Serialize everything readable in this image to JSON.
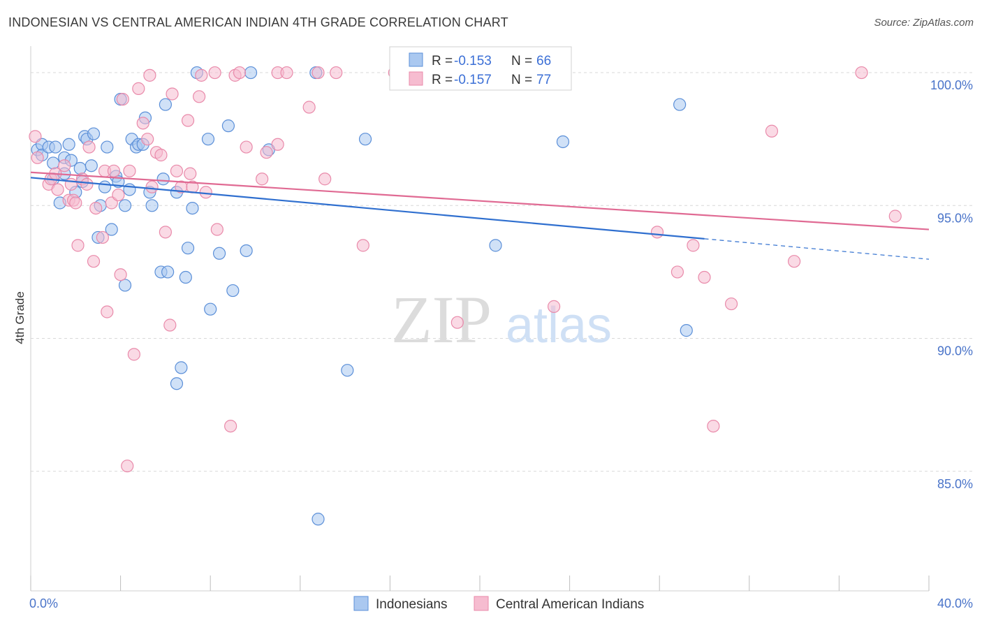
{
  "title": "INDONESIAN VS CENTRAL AMERICAN INDIAN 4TH GRADE CORRELATION CHART",
  "source": "Source: ZipAtlas.com",
  "watermark": {
    "zip": "ZIP",
    "atlas": "atlas"
  },
  "colors": {
    "blue_fill": "#aac8f0",
    "blue_stroke": "#5b8fd8",
    "blue_line": "#2f6fcf",
    "pink_fill": "#f6bcd0",
    "pink_stroke": "#e98aaa",
    "pink_line": "#e06a93",
    "axis_label": "#4a74c9",
    "grid": "#d8d8d8"
  },
  "legend": {
    "rows": [
      {
        "r_label": "R = ",
        "r_value": "-0.153",
        "n_label": "N = ",
        "n_value": "66",
        "series": "blue"
      },
      {
        "r_label": "R = ",
        "r_value": "-0.157",
        "n_label": "N = ",
        "n_value": "77",
        "series": "pink"
      }
    ]
  },
  "bottom_legend": [
    {
      "label": "Indonesians",
      "series": "blue"
    },
    {
      "label": "Central American Indians",
      "series": "pink"
    }
  ],
  "chart_data": {
    "type": "scatter",
    "title": "INDONESIAN VS CENTRAL AMERICAN INDIAN 4TH GRADE CORRELATION CHART",
    "xlabel": "",
    "ylabel": "4th Grade",
    "xlim": [
      0,
      40
    ],
    "ylim": [
      80.5,
      101
    ],
    "x_tick_labels": [
      {
        "value": 0,
        "label": "0.0%"
      },
      {
        "value": 40,
        "label": "40.0%"
      }
    ],
    "y_ticks": [
      {
        "value": 100,
        "label": "100.0%"
      },
      {
        "value": 95,
        "label": "95.0%"
      },
      {
        "value": 90,
        "label": "90.0%"
      },
      {
        "value": 85,
        "label": "85.0%"
      }
    ],
    "x_minor_ticks": [
      0,
      4,
      8,
      12,
      16,
      20,
      24,
      28,
      32,
      36,
      40
    ],
    "grid": true,
    "legend_position": "top-center",
    "series": [
      {
        "name": "Indonesians",
        "color": "blue",
        "trend": {
          "x0": 0,
          "y0": 96.05,
          "x1": 30,
          "y1": 93.75,
          "dash_to_x": 40,
          "dash_to_y": 92.98
        },
        "points": [
          [
            0.3,
            97.1
          ],
          [
            0.5,
            97.3
          ],
          [
            0.5,
            96.9
          ],
          [
            0.8,
            97.2
          ],
          [
            1.0,
            96.0
          ],
          [
            1.0,
            96.6
          ],
          [
            1.1,
            97.2
          ],
          [
            1.3,
            95.1
          ],
          [
            1.5,
            96.2
          ],
          [
            1.5,
            96.8
          ],
          [
            1.7,
            97.3
          ],
          [
            1.8,
            96.7
          ],
          [
            2.0,
            95.5
          ],
          [
            2.2,
            96.4
          ],
          [
            2.3,
            95.9
          ],
          [
            2.4,
            97.6
          ],
          [
            2.5,
            97.5
          ],
          [
            2.7,
            96.5
          ],
          [
            2.8,
            97.7
          ],
          [
            3.0,
            93.8
          ],
          [
            3.1,
            95.0
          ],
          [
            3.3,
            95.7
          ],
          [
            3.4,
            97.2
          ],
          [
            3.6,
            94.1
          ],
          [
            3.8,
            96.1
          ],
          [
            3.9,
            95.9
          ],
          [
            4.0,
            99.0
          ],
          [
            4.2,
            92.0
          ],
          [
            4.2,
            95.0
          ],
          [
            4.4,
            95.6
          ],
          [
            4.5,
            97.5
          ],
          [
            4.7,
            97.2
          ],
          [
            4.8,
            97.3
          ],
          [
            5.0,
            97.3
          ],
          [
            5.1,
            98.3
          ],
          [
            5.3,
            95.5
          ],
          [
            5.4,
            95.0
          ],
          [
            5.8,
            92.5
          ],
          [
            5.9,
            96.0
          ],
          [
            6.0,
            98.8
          ],
          [
            6.1,
            92.5
          ],
          [
            6.5,
            95.5
          ],
          [
            6.5,
            88.3
          ],
          [
            6.7,
            88.9
          ],
          [
            6.9,
            92.3
          ],
          [
            7.0,
            93.4
          ],
          [
            7.2,
            94.9
          ],
          [
            7.4,
            100.0
          ],
          [
            7.9,
            97.5
          ],
          [
            8.0,
            91.1
          ],
          [
            8.4,
            93.2
          ],
          [
            8.8,
            98.0
          ],
          [
            9.0,
            91.8
          ],
          [
            9.6,
            93.3
          ],
          [
            9.8,
            100.0
          ],
          [
            10.6,
            97.1
          ],
          [
            12.7,
            100.0
          ],
          [
            12.8,
            83.2
          ],
          [
            14.1,
            88.8
          ],
          [
            14.9,
            97.5
          ],
          [
            18.9,
            100.0
          ],
          [
            20.5,
            100.0
          ],
          [
            20.7,
            93.5
          ],
          [
            23.7,
            97.4
          ],
          [
            28.9,
            98.8
          ],
          [
            29.2,
            90.3
          ]
        ]
      },
      {
        "name": "Central American Indians",
        "color": "pink",
        "trend": {
          "x0": 0,
          "y0": 96.25,
          "x1": 40,
          "y1": 94.1
        },
        "points": [
          [
            0.2,
            97.6
          ],
          [
            0.3,
            96.8
          ],
          [
            0.8,
            95.8
          ],
          [
            0.9,
            96.0
          ],
          [
            1.1,
            96.2
          ],
          [
            1.2,
            95.6
          ],
          [
            1.5,
            96.5
          ],
          [
            1.7,
            95.2
          ],
          [
            1.8,
            95.8
          ],
          [
            1.9,
            95.2
          ],
          [
            2.0,
            95.1
          ],
          [
            2.1,
            93.5
          ],
          [
            2.3,
            96.0
          ],
          [
            2.5,
            95.8
          ],
          [
            2.6,
            97.2
          ],
          [
            2.8,
            92.9
          ],
          [
            2.9,
            94.9
          ],
          [
            3.2,
            93.8
          ],
          [
            3.3,
            96.3
          ],
          [
            3.4,
            91.0
          ],
          [
            3.6,
            95.1
          ],
          [
            3.7,
            96.3
          ],
          [
            3.9,
            95.4
          ],
          [
            4.0,
            92.4
          ],
          [
            4.1,
            99.0
          ],
          [
            4.3,
            85.2
          ],
          [
            4.4,
            96.3
          ],
          [
            4.6,
            89.4
          ],
          [
            4.8,
            99.4
          ],
          [
            5.0,
            98.1
          ],
          [
            5.2,
            97.5
          ],
          [
            5.3,
            99.9
          ],
          [
            5.4,
            95.7
          ],
          [
            5.6,
            97.0
          ],
          [
            5.8,
            96.9
          ],
          [
            6.0,
            94.0
          ],
          [
            6.2,
            90.5
          ],
          [
            6.3,
            99.2
          ],
          [
            6.5,
            96.3
          ],
          [
            6.7,
            95.7
          ],
          [
            7.0,
            98.2
          ],
          [
            7.1,
            96.2
          ],
          [
            7.2,
            95.7
          ],
          [
            7.5,
            99.1
          ],
          [
            7.6,
            99.9
          ],
          [
            7.8,
            95.5
          ],
          [
            8.2,
            100.0
          ],
          [
            8.3,
            94.1
          ],
          [
            8.9,
            86.7
          ],
          [
            9.1,
            99.9
          ],
          [
            9.3,
            100.0
          ],
          [
            9.6,
            97.2
          ],
          [
            10.3,
            96.0
          ],
          [
            10.5,
            97.0
          ],
          [
            11.0,
            97.3
          ],
          [
            11.0,
            100.0
          ],
          [
            11.4,
            100.0
          ],
          [
            12.4,
            98.7
          ],
          [
            12.8,
            100.0
          ],
          [
            13.1,
            96.0
          ],
          [
            13.6,
            100.0
          ],
          [
            14.8,
            93.5
          ],
          [
            16.2,
            100.0
          ],
          [
            17.7,
            100.0
          ],
          [
            19.0,
            90.6
          ],
          [
            22.7,
            100.0
          ],
          [
            23.3,
            91.2
          ],
          [
            27.9,
            94.0
          ],
          [
            28.8,
            92.5
          ],
          [
            29.5,
            93.5
          ],
          [
            30.0,
            92.3
          ],
          [
            30.4,
            86.7
          ],
          [
            31.2,
            91.3
          ],
          [
            33.0,
            97.8
          ],
          [
            34.0,
            92.9
          ],
          [
            37.0,
            100.0
          ],
          [
            38.5,
            94.6
          ]
        ]
      }
    ]
  }
}
